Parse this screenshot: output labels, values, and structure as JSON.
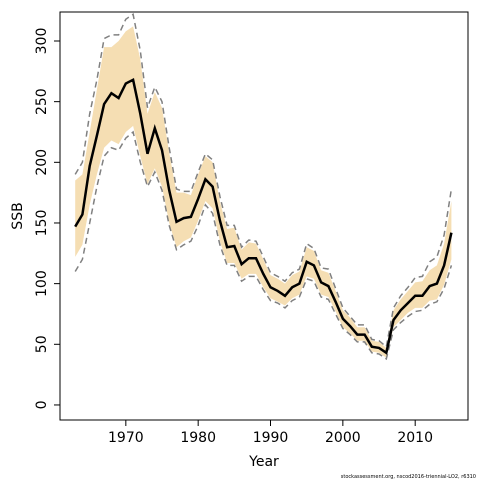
{
  "chart_data": {
    "type": "line",
    "xlabel": "Year",
    "ylabel": "SSB",
    "credit": "stockassessment.org, nscod2016-triennial-LO2, r6310",
    "x": [
      1963,
      1964,
      1965,
      1966,
      1967,
      1968,
      1969,
      1970,
      1971,
      1972,
      1973,
      1974,
      1975,
      1976,
      1977,
      1978,
      1979,
      1980,
      1981,
      1982,
      1983,
      1984,
      1985,
      1986,
      1987,
      1988,
      1989,
      1990,
      1991,
      1992,
      1993,
      1994,
      1995,
      1996,
      1997,
      1998,
      1999,
      2000,
      2001,
      2002,
      2003,
      2004,
      2005,
      2006,
      2007,
      2008,
      2009,
      2010,
      2011,
      2012,
      2013,
      2014,
      2015
    ],
    "estimate": {
      "color": "#000000",
      "values": [
        147,
        157,
        197,
        222,
        248,
        257,
        253,
        265,
        268,
        240,
        207,
        228,
        210,
        177,
        151,
        154,
        155,
        170,
        186,
        180,
        152,
        130,
        131,
        116,
        121,
        121,
        108,
        97,
        94,
        90,
        97,
        100,
        118,
        115,
        101,
        98,
        85,
        71,
        65,
        58,
        58,
        48,
        47,
        43,
        70,
        78,
        84,
        90,
        90,
        98,
        100,
        115,
        142
      ]
    },
    "band": {
      "color": "#f5deb3",
      "lower": [
        122,
        132,
        165,
        190,
        212,
        218,
        215,
        225,
        230,
        205,
        182,
        195,
        180,
        150,
        130,
        135,
        138,
        152,
        168,
        162,
        135,
        117,
        117,
        104,
        108,
        108,
        97,
        88,
        85,
        82,
        88,
        91,
        106,
        104,
        91,
        89,
        77,
        64,
        59,
        53,
        53,
        44,
        43,
        39,
        64,
        70,
        76,
        80,
        80,
        86,
        87,
        99,
        120
      ],
      "upper": [
        185,
        190,
        225,
        260,
        295,
        295,
        300,
        308,
        312,
        285,
        240,
        258,
        245,
        208,
        175,
        175,
        173,
        190,
        205,
        200,
        168,
        145,
        146,
        128,
        134,
        133,
        120,
        107,
        104,
        100,
        107,
        110,
        130,
        127,
        111,
        109,
        94,
        78,
        72,
        64,
        64,
        53,
        52,
        47,
        78,
        87,
        94,
        101,
        102,
        111,
        115,
        133,
        168
      ]
    },
    "dashed": {
      "color": "#808080",
      "lower": [
        110,
        120,
        150,
        180,
        205,
        212,
        210,
        220,
        225,
        200,
        180,
        192,
        177,
        148,
        128,
        132,
        135,
        148,
        165,
        158,
        132,
        115,
        115,
        102,
        106,
        106,
        95,
        86,
        84,
        80,
        86,
        89,
        104,
        102,
        89,
        87,
        75,
        63,
        58,
        52,
        52,
        43,
        42,
        38,
        62,
        68,
        73,
        77,
        78,
        83,
        85,
        96,
        115
      ],
      "upper": [
        190,
        200,
        240,
        268,
        302,
        305,
        305,
        318,
        322,
        292,
        245,
        262,
        250,
        212,
        178,
        176,
        176,
        192,
        207,
        202,
        172,
        148,
        148,
        130,
        136,
        135,
        122,
        109,
        106,
        102,
        109,
        112,
        133,
        129,
        113,
        112,
        96,
        80,
        73,
        66,
        66,
        54,
        53,
        48,
        80,
        90,
        97,
        105,
        106,
        118,
        122,
        140,
        178
      ]
    },
    "xlim": [
      1960.9,
      2017.3
    ],
    "xticks": [
      1970,
      1980,
      1990,
      2000,
      2010
    ],
    "ylim": [
      -12.4,
      323.9
    ],
    "yticks": [
      0,
      50,
      100,
      150,
      200,
      250,
      300
    ]
  }
}
